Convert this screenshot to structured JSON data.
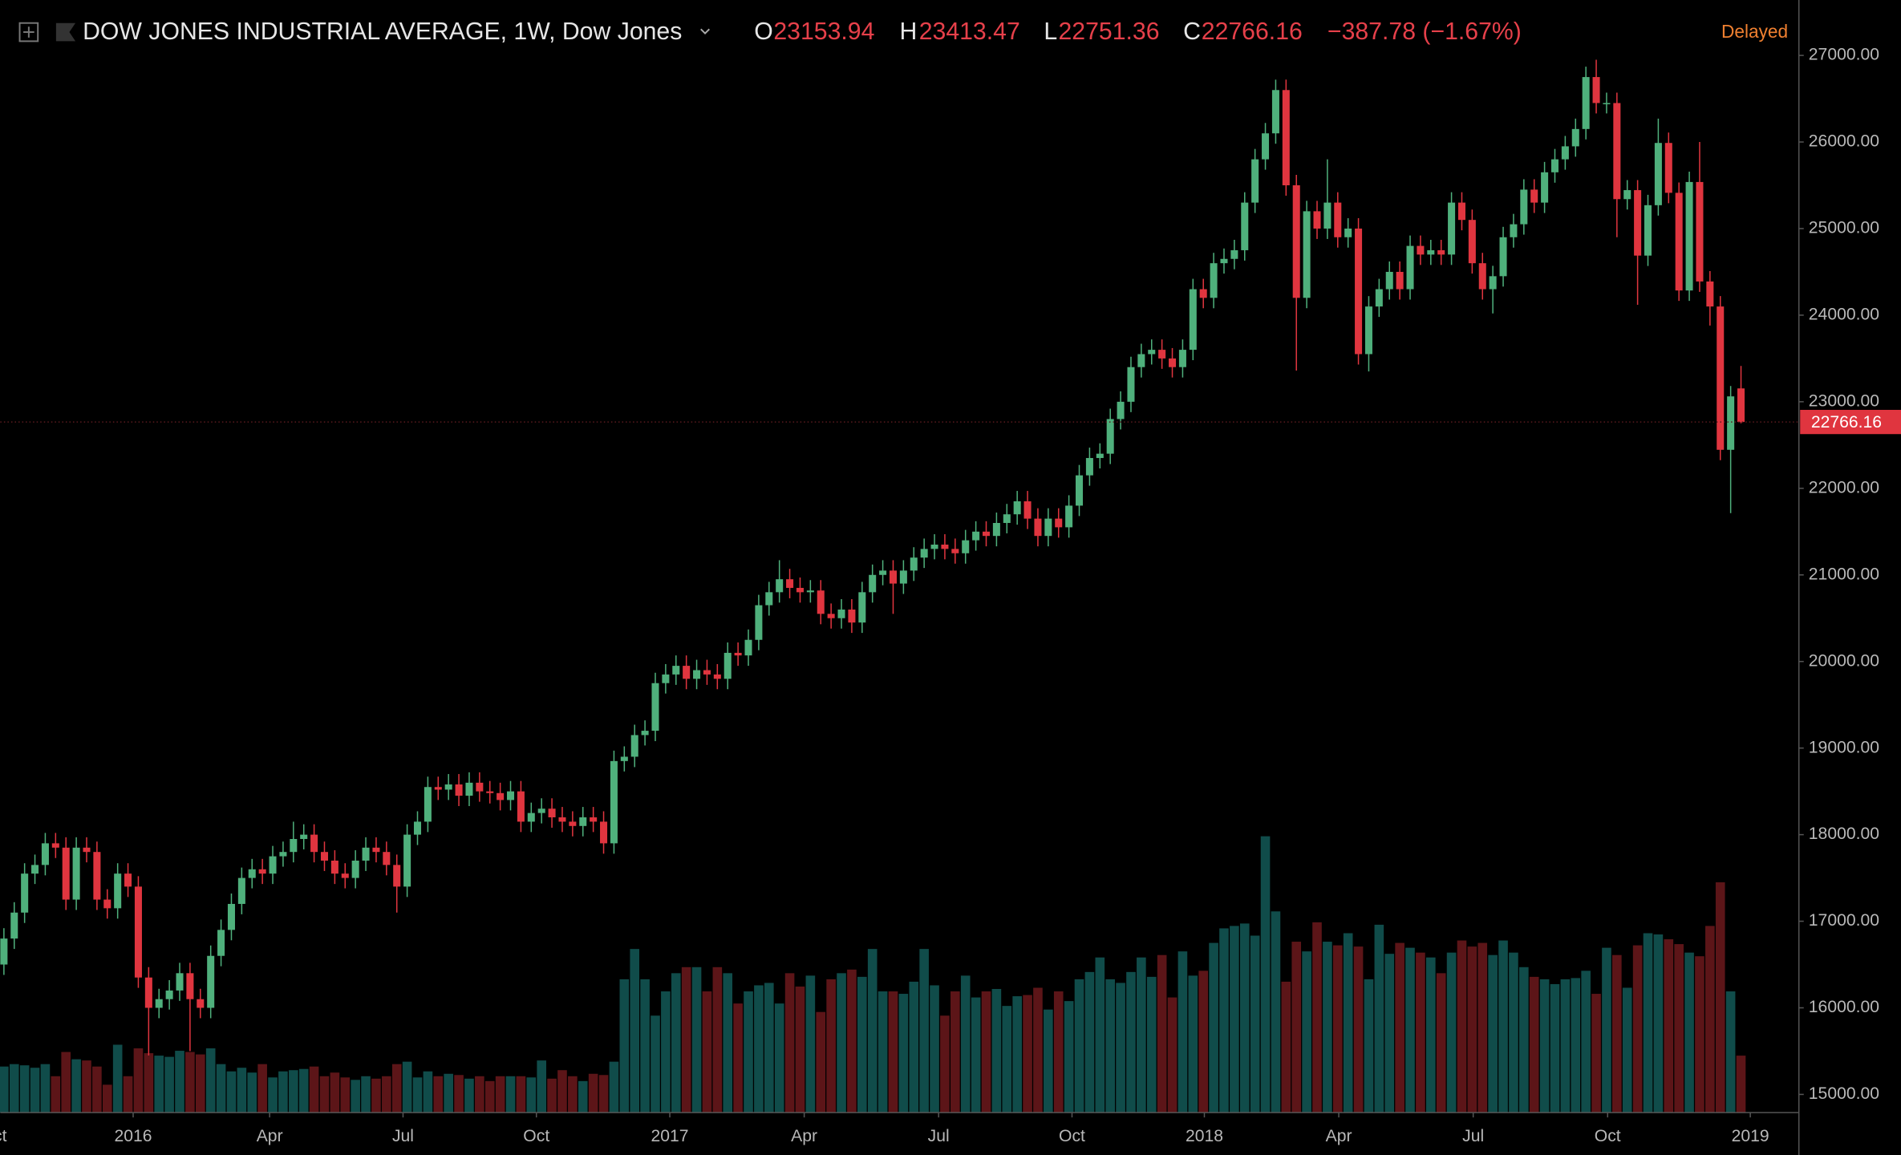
{
  "title": "DOW JONES INDUSTRIAL AVERAGE, 1W, Dow Jones",
  "quote": {
    "items": [
      {
        "label": "O",
        "value": 23153.94
      },
      {
        "label": "H",
        "value": 23413.47
      },
      {
        "label": "L",
        "value": 22751.36
      },
      {
        "label": "C",
        "value": 22766.16
      }
    ],
    "change": "−387.78 (−1.67%)"
  },
  "status": "Delayed",
  "chart_data": {
    "type": "candlestick",
    "up_color": "#4fb07c",
    "down_color": "#e0353f",
    "volume_up_color": "#104c4a",
    "volume_down_color": "#5c1518",
    "xlim": [
      -0.35,
      173.6
    ],
    "ylim": [
      14790,
      27640
    ],
    "xticks": [
      {
        "value": -1,
        "label": "Oct"
      },
      {
        "value": 12.5,
        "label": "2016"
      },
      {
        "value": 25.7,
        "label": "Apr"
      },
      {
        "value": 38.6,
        "label": "Jul"
      },
      {
        "value": 51.5,
        "label": "Oct"
      },
      {
        "value": 64.4,
        "label": "2017"
      },
      {
        "value": 77.4,
        "label": "Apr"
      },
      {
        "value": 90.4,
        "label": "Jul"
      },
      {
        "value": 103.3,
        "label": "Oct"
      },
      {
        "value": 116.1,
        "label": "2018"
      },
      {
        "value": 129.1,
        "label": "Apr"
      },
      {
        "value": 142.1,
        "label": "Jul"
      },
      {
        "value": 155.1,
        "label": "Oct"
      },
      {
        "value": 168.9,
        "label": "2019"
      }
    ],
    "yticks": [
      {
        "value": 15000,
        "label": "15000.00"
      },
      {
        "value": 16000,
        "label": "16000.00"
      },
      {
        "value": 17000,
        "label": "17000.00"
      },
      {
        "value": 18000,
        "label": "18000.00"
      },
      {
        "value": 19000,
        "label": "19000.00"
      },
      {
        "value": 20000,
        "label": "20000.00"
      },
      {
        "value": 21000,
        "label": "21000.00"
      },
      {
        "value": 22000,
        "label": "22000.00"
      },
      {
        "value": 23000,
        "label": "23000.00"
      },
      {
        "value": 24000,
        "label": "24000.00"
      },
      {
        "value": 25000,
        "label": "25000.00"
      },
      {
        "value": 26000,
        "label": "26000.00"
      },
      {
        "value": 27000,
        "label": "27000.00"
      }
    ],
    "open": [
      16500,
      16800,
      17100,
      17550,
      17650,
      17900,
      17850,
      17250,
      17850,
      17800,
      17250,
      17150,
      17550,
      17400,
      16350,
      16000,
      16100,
      16200,
      16400,
      16100,
      16000,
      16600,
      16900,
      17200,
      17500,
      17600,
      17550,
      17750,
      17800,
      17950,
      18000,
      17800,
      17700,
      17550,
      17500,
      17700,
      17850,
      17800,
      17650,
      17400,
      18000,
      18150,
      18550,
      18520,
      18580,
      18450,
      18600,
      18500,
      18480,
      18400,
      18500,
      18150,
      18250,
      18300,
      18200,
      18150,
      18100,
      18200,
      18150,
      17900,
      18850,
      18900,
      19150,
      19200,
      19750,
      19850,
      19950,
      19800,
      19900,
      19850,
      19800,
      20100,
      20070,
      20250,
      20650,
      20800,
      20950,
      20850,
      20800,
      20820,
      20550,
      20500,
      20600,
      20450,
      20800,
      21000,
      21050,
      20900,
      21050,
      21200,
      21300,
      21350,
      21300,
      21250,
      21400,
      21500,
      21450,
      21600,
      21700,
      21850,
      21650,
      21450,
      21650,
      21550,
      21800,
      22150,
      22350,
      22400,
      22800,
      23000,
      23400,
      23550,
      23600,
      23500,
      23400,
      23600,
      24300,
      24200,
      24600,
      24650,
      24750,
      25300,
      25800,
      26100,
      26600,
      25500,
      24200,
      25200,
      25000,
      25300,
      24900,
      25000,
      23550,
      24100,
      24300,
      24500,
      24300,
      24800,
      24700,
      24750,
      24700,
      25300,
      25100,
      24600,
      24300,
      24450,
      24900,
      25050,
      25450,
      25300,
      25650,
      25800,
      25950,
      26150,
      26750,
      26450,
      26450,
      25340,
      25444,
      24688,
      25270,
      25989,
      25413,
      24285,
      25538,
      24389,
      24100,
      22445,
      23153.94
    ],
    "high": [
      16920,
      17220,
      17670,
      17770,
      18020,
      18020,
      17970,
      17970,
      17970,
      17920,
      17370,
      17670,
      17670,
      17520,
      16470,
      16220,
      16320,
      16520,
      16520,
      16220,
      16720,
      17020,
      17320,
      17620,
      17720,
      17720,
      17870,
      17920,
      18150,
      18120,
      18120,
      17920,
      17820,
      17670,
      17820,
      17970,
      17970,
      17920,
      17770,
      18120,
      18270,
      18670,
      18670,
      18700,
      18700,
      18720,
      18720,
      18620,
      18600,
      18620,
      18620,
      18370,
      18420,
      18420,
      18320,
      18270,
      18320,
      18320,
      18270,
      18970,
      19020,
      19270,
      19320,
      19870,
      19970,
      20070,
      20070,
      20020,
      20020,
      19970,
      20220,
      20220,
      20370,
      20770,
      20920,
      21170,
      21070,
      20970,
      20940,
      20940,
      20670,
      20720,
      20720,
      20920,
      21120,
      21170,
      21170,
      21170,
      21320,
      21420,
      21470,
      21470,
      21420,
      21520,
      21620,
      21620,
      21720,
      21820,
      21970,
      21970,
      21770,
      21770,
      21770,
      21920,
      22270,
      22470,
      22520,
      22920,
      23120,
      23520,
      23670,
      23720,
      23720,
      23620,
      23720,
      24420,
      24420,
      24720,
      24770,
      24870,
      25420,
      25920,
      26220,
      26720,
      26720,
      25620,
      25320,
      25320,
      25800,
      25420,
      25120,
      25120,
      24220,
      24420,
      24620,
      24620,
      24920,
      24920,
      24870,
      24870,
      25420,
      25420,
      25220,
      24720,
      24570,
      25020,
      25170,
      25570,
      25570,
      25770,
      25920,
      26070,
      26270,
      26870,
      26950,
      26570,
      26570,
      25560,
      25560,
      25390,
      26270,
      26109,
      25533,
      25658,
      26000,
      24509,
      24220,
      23182,
      23413.47
    ],
    "low": [
      16380,
      16680,
      16980,
      17430,
      17530,
      17730,
      17130,
      17130,
      17680,
      17130,
      17030,
      17030,
      17280,
      16230,
      15450,
      15880,
      15980,
      16080,
      15500,
      15880,
      15880,
      16480,
      16780,
      17080,
      17380,
      17430,
      17430,
      17630,
      17680,
      17830,
      17680,
      17580,
      17430,
      17380,
      17380,
      17580,
      17680,
      17530,
      17100,
      17280,
      17880,
      18030,
      18400,
      18400,
      18330,
      18330,
      18380,
      18360,
      18280,
      18280,
      18030,
      18030,
      18130,
      18080,
      18030,
      17980,
      17980,
      18030,
      17780,
      17780,
      18730,
      18780,
      19030,
      19080,
      19630,
      19730,
      19680,
      19680,
      19730,
      19680,
      19680,
      19950,
      19950,
      20130,
      20530,
      20680,
      20730,
      20680,
      20680,
      20430,
      20380,
      20380,
      20330,
      20330,
      20680,
      20880,
      20550,
      20780,
      20930,
      21080,
      21180,
      21180,
      21130,
      21130,
      21280,
      21330,
      21330,
      21480,
      21580,
      21530,
      21330,
      21330,
      21430,
      21430,
      21680,
      22030,
      22230,
      22280,
      22680,
      22880,
      23280,
      23430,
      23380,
      23280,
      23280,
      23480,
      24080,
      24080,
      24480,
      24530,
      24630,
      25180,
      25680,
      25980,
      25380,
      23360,
      24080,
      24880,
      24880,
      24780,
      24780,
      23430,
      23350,
      23980,
      24180,
      24180,
      24180,
      24580,
      24580,
      24580,
      24580,
      24980,
      24480,
      24180,
      24020,
      24330,
      24780,
      24930,
      25180,
      25180,
      25530,
      25680,
      25830,
      26030,
      26330,
      26330,
      24900,
      25220,
      24120,
      24568,
      25150,
      25293,
      24165,
      24165,
      24269,
      23880,
      22325,
      21713,
      22751.36
    ],
    "close": [
      16800,
      17100,
      17550,
      17650,
      17900,
      17850,
      17250,
      17850,
      17800,
      17250,
      17150,
      17550,
      17400,
      16350,
      16000,
      16100,
      16200,
      16400,
      16100,
      16000,
      16600,
      16900,
      17200,
      17500,
      17600,
      17550,
      17750,
      17800,
      17950,
      18000,
      17800,
      17700,
      17550,
      17500,
      17700,
      17850,
      17800,
      17650,
      17400,
      18000,
      18150,
      18550,
      18520,
      18580,
      18450,
      18600,
      18500,
      18480,
      18400,
      18500,
      18150,
      18250,
      18300,
      18200,
      18150,
      18100,
      18200,
      18150,
      17900,
      18850,
      18900,
      19150,
      19200,
      19750,
      19850,
      19950,
      19800,
      19900,
      19850,
      19800,
      20100,
      20070,
      20250,
      20650,
      20800,
      20950,
      20850,
      20800,
      20820,
      20550,
      20500,
      20600,
      20450,
      20800,
      21000,
      21050,
      20900,
      21050,
      21200,
      21300,
      21350,
      21300,
      21250,
      21400,
      21500,
      21450,
      21600,
      21700,
      21850,
      21650,
      21450,
      21650,
      21550,
      21800,
      22150,
      22350,
      22400,
      22800,
      23000,
      23400,
      23550,
      23600,
      23500,
      23400,
      23600,
      24300,
      24200,
      24600,
      24650,
      24750,
      25300,
      25800,
      26100,
      26600,
      25500,
      24200,
      25200,
      25000,
      25300,
      24900,
      25000,
      23550,
      24100,
      24300,
      24500,
      24300,
      24800,
      24700,
      24750,
      24700,
      25300,
      25100,
      24600,
      24300,
      24450,
      24900,
      25050,
      25450,
      25300,
      25650,
      25800,
      25950,
      26150,
      26750,
      26450,
      26450,
      25340,
      25444,
      24688,
      25270,
      25989,
      25413,
      24285,
      25538,
      24389,
      24100,
      22445,
      23062,
      22766.16
    ],
    "volume": [
      380,
      400,
      390,
      370,
      400,
      300,
      500,
      440,
      430,
      380,
      230,
      560,
      300,
      530,
      490,
      470,
      460,
      510,
      500,
      480,
      530,
      400,
      340,
      370,
      330,
      400,
      290,
      340,
      350,
      360,
      380,
      300,
      330,
      290,
      270,
      300,
      280,
      300,
      400,
      420,
      290,
      340,
      300,
      320,
      310,
      280,
      300,
      260,
      300,
      300,
      300,
      290,
      430,
      280,
      350,
      300,
      260,
      320,
      310,
      420,
      1100,
      1350,
      1100,
      800,
      1000,
      1150,
      1200,
      1200,
      1000,
      1200,
      1150,
      900,
      1000,
      1050,
      1070,
      900,
      1150,
      1040,
      1130,
      830,
      1100,
      1150,
      1180,
      1120,
      1350,
      1000,
      1000,
      980,
      1080,
      1350,
      1050,
      800,
      1000,
      1130,
      950,
      1000,
      1020,
      880,
      960,
      970,
      1030,
      850,
      1000,
      920,
      1100,
      1160,
      1280,
      1100,
      1070,
      1160,
      1280,
      1120,
      1300,
      950,
      1330,
      1130,
      1170,
      1400,
      1520,
      1540,
      1560,
      1460,
      2280,
      1660,
      1080,
      1410,
      1330,
      1570,
      1410,
      1380,
      1480,
      1370,
      1100,
      1550,
      1310,
      1400,
      1360,
      1320,
      1280,
      1150,
      1320,
      1420,
      1370,
      1400,
      1300,
      1420,
      1320,
      1200,
      1120,
      1100,
      1060,
      1100,
      1110,
      1170,
      980,
      1360,
      1300,
      1030,
      1380,
      1480,
      1470,
      1430,
      1390,
      1320,
      1290,
      1540,
      1900,
      1000,
      470
    ]
  }
}
